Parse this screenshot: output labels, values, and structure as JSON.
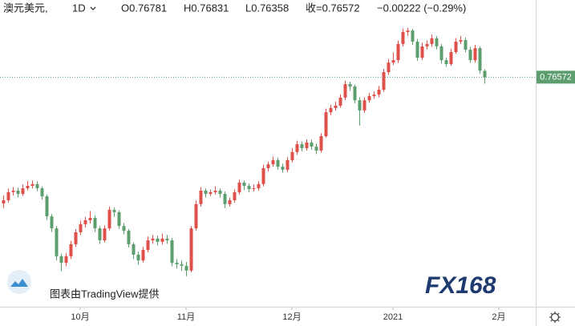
{
  "chart_data": {
    "type": "candlestick",
    "header": {
      "symbol": "澳元美元,",
      "interval": "1D",
      "open": "O0.76781",
      "high": "H0.76831",
      "low": "L0.76358",
      "close": "收=0.76572",
      "change": "−0.00222 (−0.29%)"
    },
    "attribution": "图表由TradingView提供",
    "watermark": "FX168",
    "open": [
      0.7235,
      0.7246,
      0.7273,
      0.7278,
      0.7267,
      0.7286,
      0.7294,
      0.73,
      0.7286,
      0.7259,
      0.7192,
      0.7152,
      0.7059,
      0.7037,
      0.7059,
      0.7099,
      0.7139,
      0.7166,
      0.7179,
      0.7187,
      0.7152,
      0.7112,
      0.7152,
      0.7214,
      0.7206,
      0.716,
      0.7144,
      0.7099,
      0.7064,
      0.7045,
      0.708,
      0.7112,
      0.7118,
      0.7107,
      0.7118,
      0.7112,
      0.7037,
      0.7032,
      0.7027,
      0.7011,
      0.7152,
      0.7233,
      0.7278,
      0.7267,
      0.7273,
      0.7278,
      0.7267,
      0.7233,
      0.7246,
      0.7273,
      0.7305,
      0.7294,
      0.7283,
      0.7286,
      0.73,
      0.7353,
      0.7366,
      0.738,
      0.7358,
      0.7348,
      0.738,
      0.7407,
      0.7433,
      0.742,
      0.7439,
      0.7425,
      0.7412,
      0.746,
      0.754,
      0.7554,
      0.7562,
      0.7589,
      0.7634,
      0.7626,
      0.758,
      0.7546,
      0.758,
      0.7594,
      0.7599,
      0.7615,
      0.7674,
      0.7706,
      0.7714,
      0.7768,
      0.7808,
      0.7813,
      0.7776,
      0.7722,
      0.776,
      0.7768,
      0.7787,
      0.776,
      0.7714,
      0.7701,
      0.7741,
      0.7776,
      0.7781,
      0.7749,
      0.7714,
      0.7754,
      0.76781
    ],
    "high": [
      0.7262,
      0.7285,
      0.729,
      0.7288,
      0.7298,
      0.731,
      0.7312,
      0.7309,
      0.7292,
      0.7265,
      0.72,
      0.716,
      0.7068,
      0.707,
      0.711,
      0.715,
      0.7178,
      0.719,
      0.721,
      0.7195,
      0.716,
      0.7162,
      0.7225,
      0.7222,
      0.7212,
      0.717,
      0.715,
      0.7105,
      0.7075,
      0.709,
      0.7125,
      0.713,
      0.7128,
      0.7135,
      0.713,
      0.712,
      0.705,
      0.7045,
      0.704,
      0.716,
      0.7245,
      0.729,
      0.7285,
      0.7282,
      0.7292,
      0.7285,
      0.7275,
      0.7255,
      0.7282,
      0.7315,
      0.7312,
      0.7302,
      0.7298,
      0.731,
      0.7365,
      0.7375,
      0.7392,
      0.7388,
      0.7368,
      0.739,
      0.742,
      0.7445,
      0.7442,
      0.745,
      0.7448,
      0.7435,
      0.747,
      0.7552,
      0.7565,
      0.7575,
      0.76,
      0.7645,
      0.7642,
      0.7632,
      0.759,
      0.759,
      0.7605,
      0.761,
      0.7628,
      0.7685,
      0.7718,
      0.774,
      0.778,
      0.782,
      0.7822,
      0.7818,
      0.7785,
      0.7772,
      0.778,
      0.78,
      0.7795,
      0.7768,
      0.7722,
      0.7752,
      0.7788,
      0.7795,
      0.779,
      0.7758,
      0.7765,
      0.776,
      0.76831
    ],
    "low": [
      0.722,
      0.7238,
      0.7262,
      0.7255,
      0.726,
      0.7279,
      0.7285,
      0.7276,
      0.7248,
      0.718,
      0.714,
      0.7045,
      0.7008,
      0.7025,
      0.705,
      0.709,
      0.713,
      0.7155,
      0.7168,
      0.714,
      0.71,
      0.7105,
      0.7145,
      0.719,
      0.715,
      0.7132,
      0.7088,
      0.705,
      0.703,
      0.7038,
      0.7072,
      0.71,
      0.7095,
      0.7098,
      0.71,
      0.7025,
      0.7018,
      0.701,
      0.6992,
      0.7005,
      0.7145,
      0.7225,
      0.7255,
      0.726,
      0.7265,
      0.7255,
      0.722,
      0.7225,
      0.7238,
      0.7265,
      0.728,
      0.7272,
      0.7275,
      0.7278,
      0.7292,
      0.7342,
      0.7358,
      0.7348,
      0.7338,
      0.734,
      0.7372,
      0.7398,
      0.741,
      0.7412,
      0.7415,
      0.74,
      0.7405,
      0.7455,
      0.753,
      0.7545,
      0.7555,
      0.758,
      0.7612,
      0.757,
      0.7495,
      0.7538,
      0.7572,
      0.7585,
      0.759,
      0.7608,
      0.7665,
      0.7698,
      0.7705,
      0.776,
      0.7795,
      0.7765,
      0.7712,
      0.7715,
      0.775,
      0.7758,
      0.775,
      0.7702,
      0.7692,
      0.7695,
      0.7735,
      0.7768,
      0.774,
      0.7705,
      0.7706,
      0.7668,
      0.76358
    ],
    "close": [
      0.7246,
      0.7273,
      0.7278,
      0.7267,
      0.7286,
      0.7294,
      0.73,
      0.7286,
      0.7259,
      0.7192,
      0.7152,
      0.7059,
      0.7037,
      0.7059,
      0.7099,
      0.7139,
      0.7166,
      0.7179,
      0.7187,
      0.7152,
      0.7112,
      0.7152,
      0.7214,
      0.7206,
      0.716,
      0.7144,
      0.7099,
      0.7064,
      0.7045,
      0.708,
      0.7112,
      0.7118,
      0.7107,
      0.7118,
      0.7112,
      0.7037,
      0.7032,
      0.7027,
      0.7011,
      0.7152,
      0.7233,
      0.7278,
      0.7267,
      0.7273,
      0.7278,
      0.7267,
      0.7233,
      0.7246,
      0.7273,
      0.7305,
      0.7294,
      0.7283,
      0.7286,
      0.73,
      0.7353,
      0.7366,
      0.738,
      0.7358,
      0.7348,
      0.738,
      0.7407,
      0.7433,
      0.742,
      0.7439,
      0.7425,
      0.7412,
      0.746,
      0.754,
      0.7554,
      0.7562,
      0.7589,
      0.7634,
      0.7626,
      0.758,
      0.7546,
      0.758,
      0.7594,
      0.7599,
      0.7615,
      0.7674,
      0.7706,
      0.7714,
      0.7768,
      0.7808,
      0.7813,
      0.7776,
      0.7722,
      0.776,
      0.7768,
      0.7787,
      0.776,
      0.7714,
      0.7701,
      0.7741,
      0.7776,
      0.7781,
      0.7749,
      0.7714,
      0.7754,
      0.7679,
      0.76572
    ],
    "xlim": [
      -0.67,
      110.67
    ],
    "xticks": [
      {
        "value": 16,
        "label": "10月"
      },
      {
        "value": 38,
        "label": "11月"
      },
      {
        "value": 60,
        "label": "12月"
      },
      {
        "value": 81,
        "label": "2021"
      },
      {
        "value": 103,
        "label": "2月"
      }
    ],
    "ylim": [
      0.689,
      0.7915
    ],
    "grid": false,
    "up_color": "#e0504b",
    "down_color": "#5c9e6e"
  }
}
